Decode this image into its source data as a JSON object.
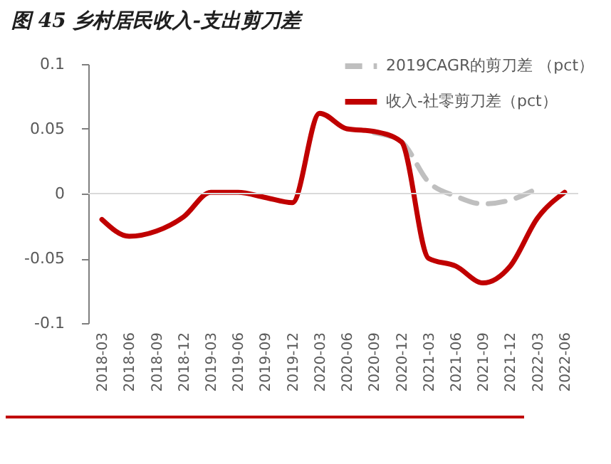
{
  "chart_data": {
    "type": "line",
    "title": "图 45  乡村居民收入-支出剪刀差",
    "categories": [
      "2018-03",
      "2018-06",
      "2018-09",
      "2018-12",
      "2019-03",
      "2019-06",
      "2019-09",
      "2019-12",
      "2020-03",
      "2020-06",
      "2020-09",
      "2020-12",
      "2021-03",
      "2021-06",
      "2021-09",
      "2021-12",
      "2022-03",
      "2022-06"
    ],
    "series": [
      {
        "name": "2019CAGR的剪刀差 （pct）",
        "color": "#bfbfbf",
        "line_style": "dashed",
        "values": [
          null,
          null,
          null,
          null,
          null,
          null,
          null,
          null,
          null,
          null,
          0.047,
          0.04,
          0.009,
          -0.002,
          -0.008,
          -0.005,
          0.004,
          null
        ]
      },
      {
        "name": "收入-社零剪刀差（pct）",
        "color": "#c00000",
        "line_style": "solid",
        "values": [
          -0.02,
          -0.033,
          -0.029,
          -0.018,
          0.001,
          0.001,
          -0.003,
          -0.007,
          0.062,
          0.05,
          0.048,
          0.04,
          -0.05,
          -0.056,
          -0.069,
          -0.056,
          -0.019,
          0.001
        ]
      }
    ],
    "ylim": [
      -0.1,
      0.1
    ],
    "yticks": [
      -0.1,
      -0.05,
      0,
      0.05,
      0.1
    ],
    "ref_lines": [
      {
        "axis": "y",
        "value": 0,
        "color": "#d9d9d9"
      }
    ],
    "grid": false,
    "legend": "top right"
  }
}
